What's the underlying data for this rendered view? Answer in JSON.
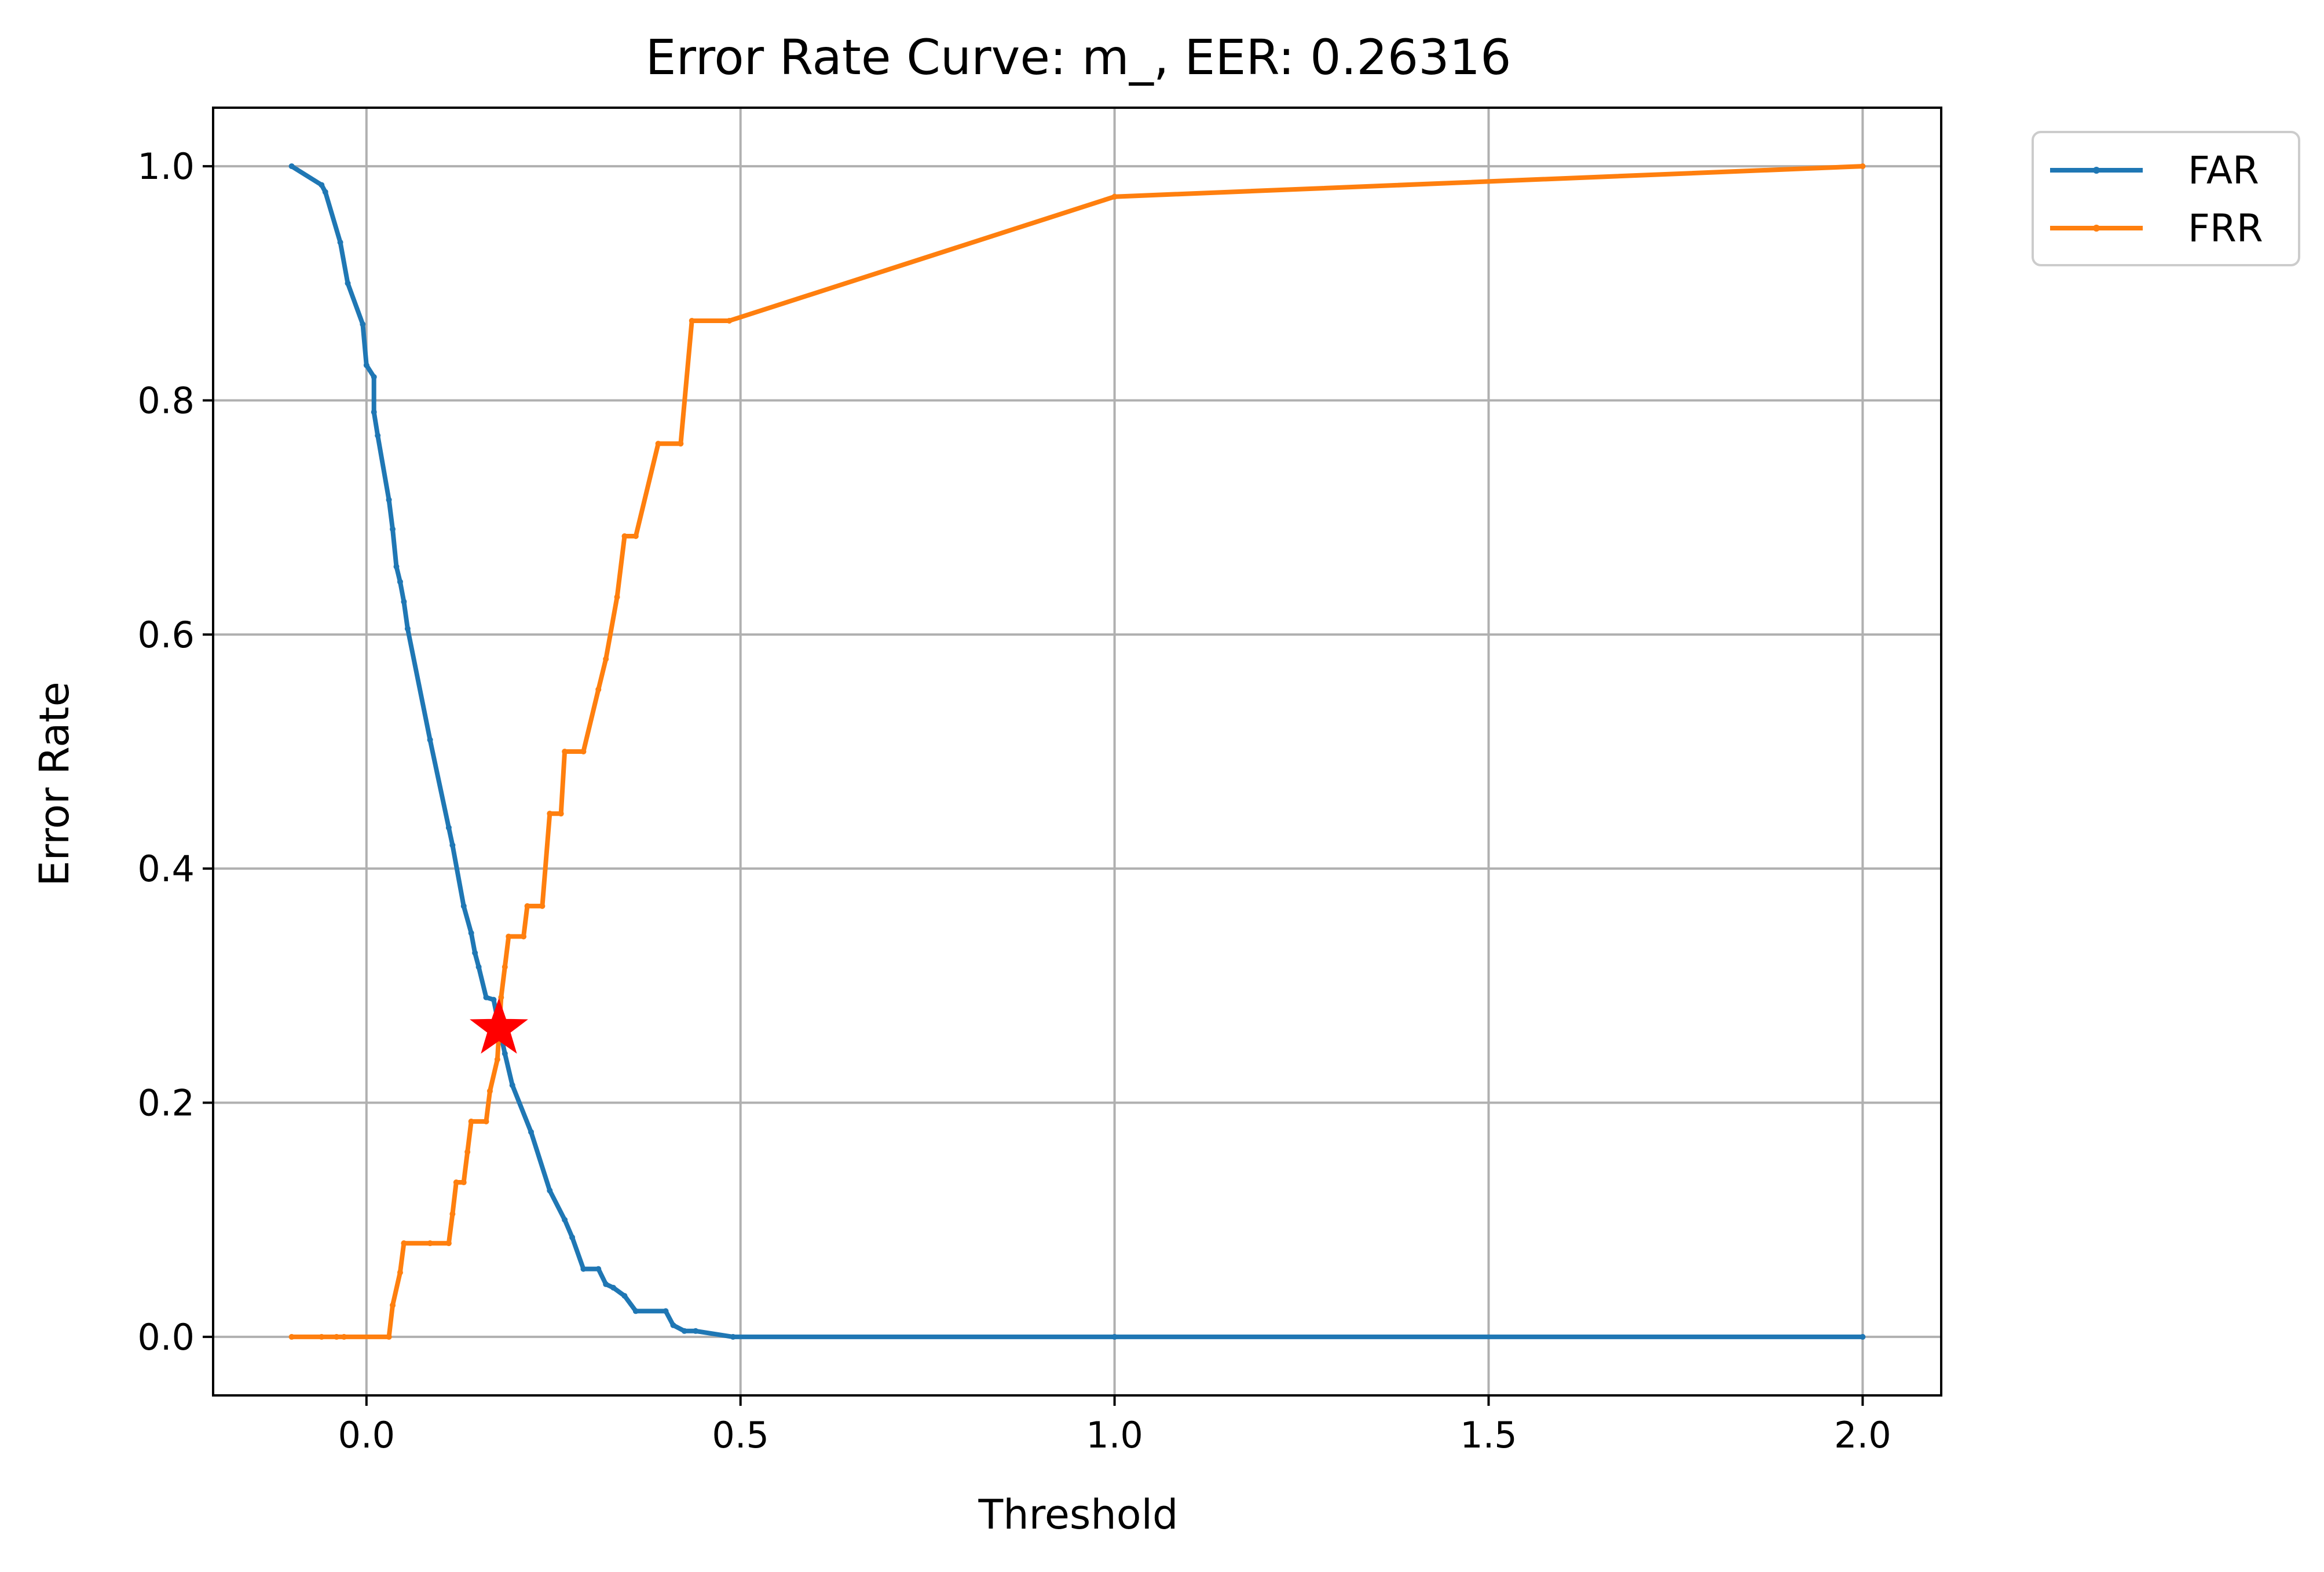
{
  "chart_data": {
    "type": "line",
    "title": "Error Rate Curve: m_, EER: 0.26316",
    "xlabel": "Threshold",
    "ylabel": "Error Rate",
    "xlim": [
      -0.205,
      2.105
    ],
    "ylim": [
      -0.05,
      1.05
    ],
    "xticks": [
      0.0,
      0.5,
      1.0,
      1.5,
      2.0
    ],
    "xtick_labels": [
      "0.0",
      "0.5",
      "1.0",
      "1.5",
      "2.0"
    ],
    "yticks": [
      0.0,
      0.2,
      0.4,
      0.6,
      0.8,
      1.0
    ],
    "ytick_labels": [
      "0.0",
      "0.2",
      "0.4",
      "0.6",
      "0.8",
      "1.0"
    ],
    "grid": true,
    "legend_position": "outside-top-right",
    "series": [
      {
        "name": "FAR",
        "color": "#1f77b4",
        "points": [
          [
            -0.1,
            1.0
          ],
          [
            -0.06,
            0.984
          ],
          [
            -0.055,
            0.978
          ],
          [
            -0.035,
            0.935
          ],
          [
            -0.025,
            0.9
          ],
          [
            -0.005,
            0.865
          ],
          [
            0.0,
            0.83
          ],
          [
            0.01,
            0.82
          ],
          [
            0.01,
            0.79
          ],
          [
            0.015,
            0.77
          ],
          [
            0.03,
            0.715
          ],
          [
            0.035,
            0.69
          ],
          [
            0.04,
            0.658
          ],
          [
            0.045,
            0.645
          ],
          [
            0.05,
            0.628
          ],
          [
            0.055,
            0.605
          ],
          [
            0.085,
            0.51
          ],
          [
            0.11,
            0.435
          ],
          [
            0.115,
            0.42
          ],
          [
            0.13,
            0.368
          ],
          [
            0.14,
            0.345
          ],
          [
            0.145,
            0.328
          ],
          [
            0.15,
            0.316
          ],
          [
            0.16,
            0.29
          ],
          [
            0.17,
            0.288
          ],
          [
            0.175,
            0.272
          ],
          [
            0.185,
            0.242
          ],
          [
            0.195,
            0.215
          ],
          [
            0.22,
            0.175
          ],
          [
            0.245,
            0.125
          ],
          [
            0.265,
            0.1
          ],
          [
            0.275,
            0.085
          ],
          [
            0.29,
            0.058
          ],
          [
            0.31,
            0.058
          ],
          [
            0.32,
            0.045
          ],
          [
            0.33,
            0.042
          ],
          [
            0.345,
            0.035
          ],
          [
            0.36,
            0.022
          ],
          [
            0.4,
            0.022
          ],
          [
            0.41,
            0.01
          ],
          [
            0.425,
            0.005
          ],
          [
            0.44,
            0.005
          ],
          [
            0.49,
            0.0
          ],
          [
            1.0,
            0.0
          ],
          [
            2.0,
            0.0
          ]
        ]
      },
      {
        "name": "FRR",
        "color": "#ff7f0e",
        "points": [
          [
            -0.1,
            0.0
          ],
          [
            -0.06,
            0.0
          ],
          [
            -0.04,
            0.0
          ],
          [
            -0.03,
            0.0
          ],
          [
            0.03,
            0.0
          ],
          [
            0.035,
            0.027
          ],
          [
            0.045,
            0.055
          ],
          [
            0.05,
            0.08
          ],
          [
            0.085,
            0.08
          ],
          [
            0.11,
            0.08
          ],
          [
            0.115,
            0.105
          ],
          [
            0.12,
            0.132
          ],
          [
            0.13,
            0.132
          ],
          [
            0.135,
            0.158
          ],
          [
            0.14,
            0.184
          ],
          [
            0.16,
            0.184
          ],
          [
            0.165,
            0.21
          ],
          [
            0.175,
            0.237
          ],
          [
            0.18,
            0.29
          ],
          [
            0.185,
            0.316
          ],
          [
            0.19,
            0.342
          ],
          [
            0.21,
            0.342
          ],
          [
            0.215,
            0.368
          ],
          [
            0.235,
            0.368
          ],
          [
            0.245,
            0.447
          ],
          [
            0.26,
            0.447
          ],
          [
            0.265,
            0.5
          ],
          [
            0.29,
            0.5
          ],
          [
            0.31,
            0.553
          ],
          [
            0.32,
            0.579
          ],
          [
            0.335,
            0.632
          ],
          [
            0.345,
            0.684
          ],
          [
            0.36,
            0.684
          ],
          [
            0.39,
            0.763
          ],
          [
            0.42,
            0.763
          ],
          [
            0.435,
            0.868
          ],
          [
            0.485,
            0.868
          ],
          [
            1.0,
            0.974
          ],
          [
            2.0,
            1.0
          ]
        ]
      }
    ],
    "markers": [
      {
        "label": "EER",
        "x": 0.177,
        "y": 0.26316,
        "color": "#ff0000",
        "shape": "star"
      }
    ]
  }
}
